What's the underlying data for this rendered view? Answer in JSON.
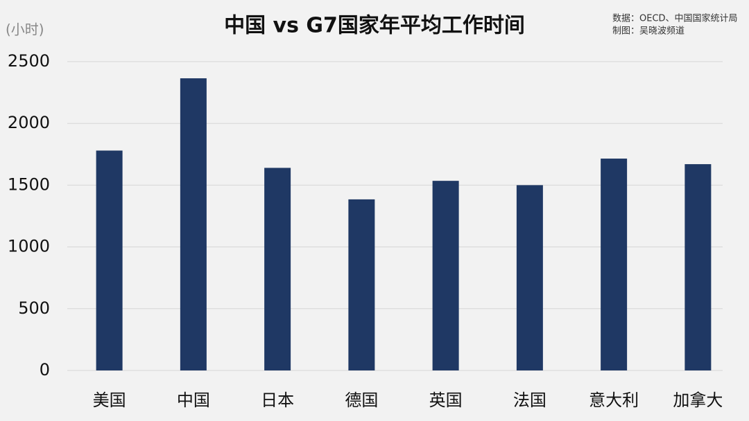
{
  "chart_data": {
    "type": "bar",
    "title": "中国 vs G7国家年平均工作时间",
    "y_label": "(小时)",
    "annotations": [
      "数据：OECD、中国国家统计局",
      "制图：吴晓波频道"
    ],
    "categories": [
      "美国",
      "中国",
      "日本",
      "德国",
      "英国",
      "法国",
      "意大利",
      "加拿大"
    ],
    "values": [
      1780,
      2365,
      1640,
      1385,
      1535,
      1500,
      1715,
      1670
    ],
    "color": "#1f3864",
    "ylim": [
      0,
      2500
    ],
    "yticks": [
      0,
      500,
      1000,
      1500,
      2000,
      2500
    ],
    "grid": true
  }
}
